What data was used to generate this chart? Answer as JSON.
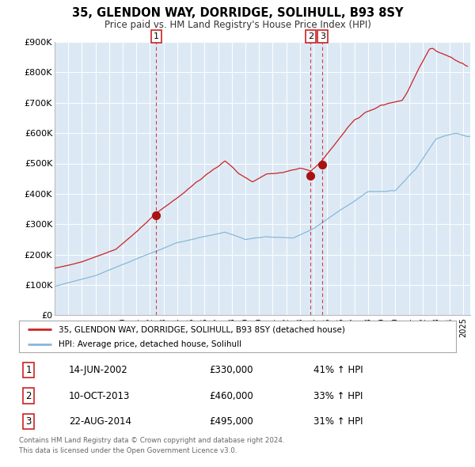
{
  "title": "35, GLENDON WAY, DORRIDGE, SOLIHULL, B93 8SY",
  "subtitle": "Price paid vs. HM Land Registry's House Price Index (HPI)",
  "plot_bg_color": "#dce9f5",
  "red_line_color": "#cc2222",
  "blue_line_color": "#88b8d8",
  "sale_marker_color": "#aa1111",
  "dashed_line_color": "#cc2222",
  "ylim": [
    0,
    900000
  ],
  "yticks": [
    0,
    100000,
    200000,
    300000,
    400000,
    500000,
    600000,
    700000,
    800000,
    900000
  ],
  "ytick_labels": [
    "£0",
    "£100K",
    "£200K",
    "£300K",
    "£400K",
    "£500K",
    "£600K",
    "£700K",
    "£800K",
    "£900K"
  ],
  "xlim_start": 1995.0,
  "xlim_end": 2025.5,
  "sales": [
    {
      "num": 1,
      "year": 2002.45,
      "price": 330000,
      "date": "14-JUN-2002",
      "hpi_pct": "41%"
    },
    {
      "num": 2,
      "year": 2013.78,
      "price": 460000,
      "date": "10-OCT-2013",
      "hpi_pct": "33%"
    },
    {
      "num": 3,
      "year": 2014.65,
      "price": 495000,
      "date": "22-AUG-2014",
      "hpi_pct": "31%"
    }
  ],
  "legend_label_red": "35, GLENDON WAY, DORRIDGE, SOLIHULL, B93 8SY (detached house)",
  "legend_label_blue": "HPI: Average price, detached house, Solihull",
  "footer1": "Contains HM Land Registry data © Crown copyright and database right 2024.",
  "footer2": "This data is licensed under the Open Government Licence v3.0."
}
